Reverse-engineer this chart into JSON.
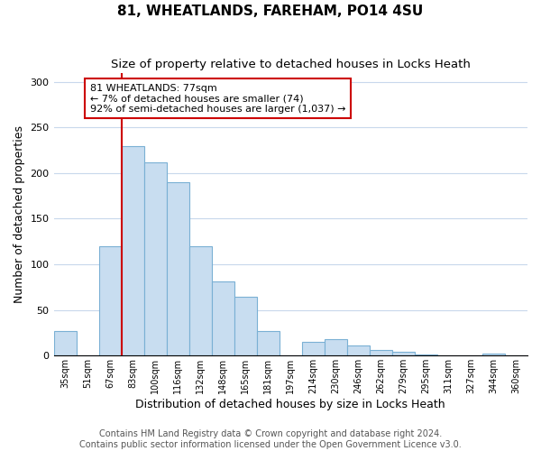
{
  "title": "81, WHEATLANDS, FAREHAM, PO14 4SU",
  "subtitle": "Size of property relative to detached houses in Locks Heath",
  "xlabel": "Distribution of detached houses by size in Locks Heath",
  "ylabel": "Number of detached properties",
  "bar_labels": [
    "35sqm",
    "51sqm",
    "67sqm",
    "83sqm",
    "100sqm",
    "116sqm",
    "132sqm",
    "148sqm",
    "165sqm",
    "181sqm",
    "197sqm",
    "214sqm",
    "230sqm",
    "246sqm",
    "262sqm",
    "279sqm",
    "295sqm",
    "311sqm",
    "327sqm",
    "344sqm",
    "360sqm"
  ],
  "bar_values": [
    27,
    0,
    120,
    230,
    212,
    190,
    120,
    81,
    65,
    27,
    0,
    15,
    18,
    11,
    6,
    4,
    1,
    0,
    0,
    2,
    0
  ],
  "bar_color": "#c8ddf0",
  "bar_edge_color": "#7ab0d4",
  "vline_x_index": 3,
  "vline_color": "#cc0000",
  "annotation_text": "81 WHEATLANDS: 77sqm\n← 7% of detached houses are smaller (74)\n92% of semi-detached houses are larger (1,037) →",
  "annotation_box_color": "#ffffff",
  "annotation_box_edge_color": "#cc0000",
  "ylim": [
    0,
    310
  ],
  "yticks": [
    0,
    50,
    100,
    150,
    200,
    250,
    300
  ],
  "footer_line1": "Contains HM Land Registry data © Crown copyright and database right 2024.",
  "footer_line2": "Contains public sector information licensed under the Open Government Licence v3.0.",
  "background_color": "#ffffff",
  "grid_color": "#c8d8ec",
  "title_fontsize": 11,
  "subtitle_fontsize": 9.5,
  "xlabel_fontsize": 9,
  "ylabel_fontsize": 9,
  "footer_fontsize": 7
}
